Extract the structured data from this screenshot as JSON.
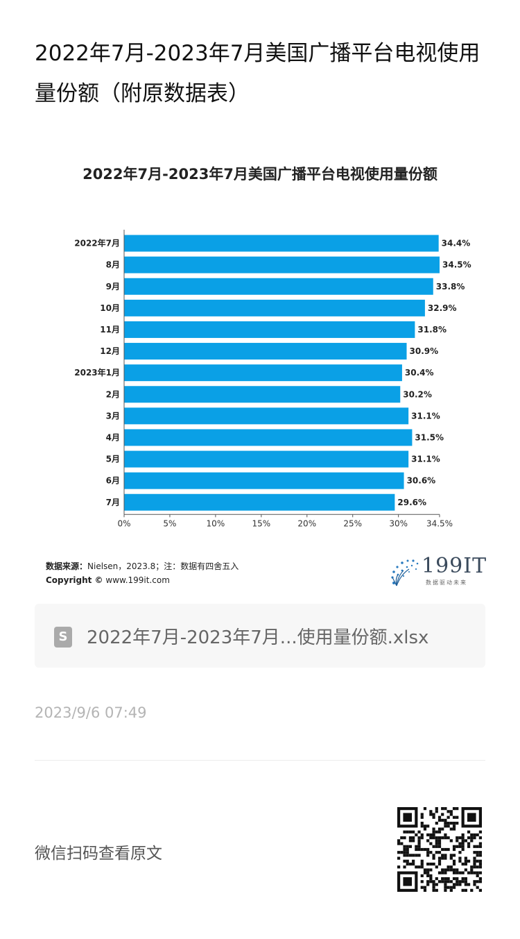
{
  "article": {
    "title": "2022年7月-2023年7月美国广播平台电视使用量份额（附原数据表）"
  },
  "chart_data": {
    "type": "bar",
    "orientation": "horizontal",
    "title": "2022年7月-2023年7月美国广播平台电视使用量份额",
    "categories": [
      "2022年7月",
      "8月",
      "9月",
      "10月",
      "11月",
      "12月",
      "2023年1月",
      "2月",
      "3月",
      "4月",
      "5月",
      "6月",
      "7月"
    ],
    "values": [
      34.4,
      34.5,
      33.8,
      32.9,
      31.8,
      30.9,
      30.4,
      30.2,
      31.1,
      31.5,
      31.1,
      30.6,
      29.6
    ],
    "value_labels": [
      "34.4%",
      "34.5%",
      "33.8%",
      "32.9%",
      "31.8%",
      "30.9%",
      "30.4%",
      "30.2%",
      "31.1%",
      "31.5%",
      "31.1%",
      "30.6%",
      "29.6%"
    ],
    "x_ticks": [
      "0%",
      "5%",
      "10%",
      "15%",
      "20%",
      "25%",
      "30%",
      "34.5%"
    ],
    "x_tick_values": [
      0,
      5,
      10,
      15,
      20,
      25,
      30,
      34.5
    ],
    "xlim": [
      0,
      34.5
    ],
    "bar_color": "#0aa0e6",
    "grid": false
  },
  "source": {
    "label": "数据来源：",
    "text": "Nielsen，2023.8；注：数据有四舍五入",
    "copyright_label": "Copyright ©",
    "copyright_text": "www.199it.com"
  },
  "brand": {
    "name": "199IT",
    "tagline": "数据驱动未来"
  },
  "file_card": {
    "icon": "document-s-icon",
    "icon_letter": "S",
    "filename": "2022年7月-2023年7月...使用量份额.xlsx"
  },
  "timestamp": "2023/9/6 07:49",
  "wechat_prompt": "微信扫码查看原文"
}
